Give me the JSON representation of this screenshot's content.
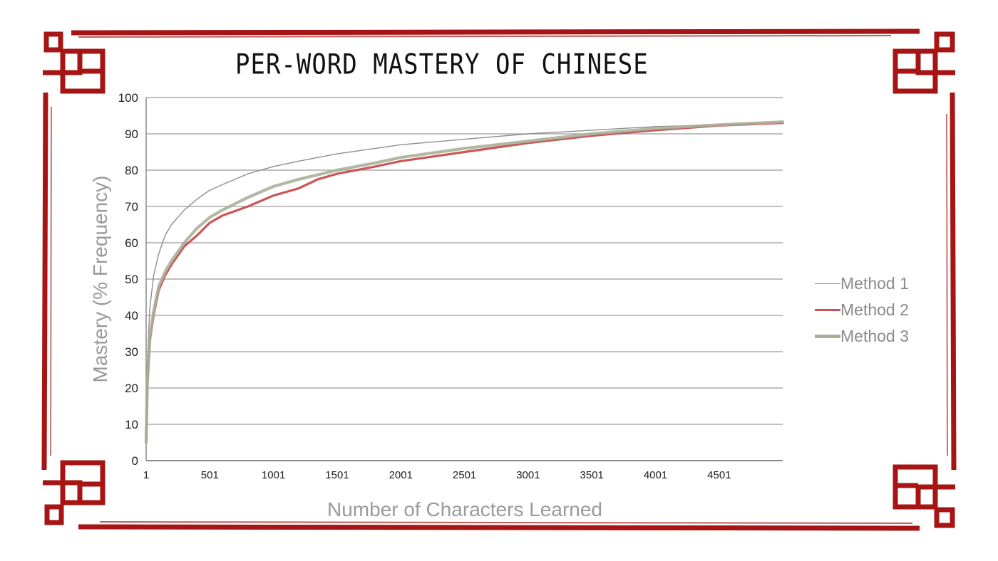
{
  "chart_data": {
    "type": "line",
    "title": "PER-WORD MASTERY OF CHINESE",
    "xlabel": "Number of Characters Learned",
    "ylabel": "Mastery (% Frequency)",
    "xlim": [
      1,
      5000
    ],
    "ylim": [
      0,
      100
    ],
    "x_ticks": [
      1,
      501,
      1001,
      1501,
      2001,
      2501,
      3001,
      3501,
      4001,
      4501
    ],
    "y_ticks": [
      0,
      10,
      20,
      30,
      40,
      50,
      60,
      70,
      80,
      90,
      100
    ],
    "grid": "horizontal",
    "legend_position": "right",
    "series": [
      {
        "name": "Method 1",
        "color": "#8e8e8e",
        "x": [
          1,
          10,
          30,
          60,
          100,
          150,
          200,
          300,
          400,
          501,
          600,
          800,
          1001,
          1200,
          1501,
          1800,
          2001,
          2501,
          3001,
          3501,
          4001,
          4501,
          5000
        ],
        "y": [
          5,
          27,
          42,
          51,
          57,
          62,
          65,
          69,
          72,
          74.5,
          76,
          79,
          81,
          82.5,
          84.5,
          86,
          87,
          88.5,
          90,
          91,
          92,
          92.5,
          93
        ]
      },
      {
        "name": "Method 2",
        "color": "#cc5555",
        "x": [
          1,
          10,
          30,
          60,
          100,
          150,
          200,
          300,
          400,
          501,
          600,
          800,
          1001,
          1150,
          1200,
          1350,
          1501,
          1800,
          2001,
          2501,
          3001,
          3501,
          4001,
          4501,
          5000
        ],
        "y": [
          5,
          20,
          33,
          40,
          47,
          51,
          54,
          59,
          62,
          65.5,
          67.5,
          70,
          73,
          74.5,
          75,
          77.5,
          79,
          81,
          82.5,
          85,
          87.5,
          89.5,
          91,
          92.3,
          93
        ]
      },
      {
        "name": "Method 3",
        "color": "#a9b09a",
        "x": [
          1,
          10,
          30,
          60,
          100,
          150,
          200,
          300,
          400,
          501,
          600,
          800,
          1001,
          1200,
          1501,
          1800,
          2001,
          2501,
          3001,
          3501,
          4001,
          4501,
          5000
        ],
        "y": [
          5,
          21,
          34,
          41,
          48,
          52,
          55,
          60,
          64,
          67,
          69,
          72.5,
          75.5,
          77.5,
          80,
          82,
          83.5,
          86,
          88,
          90,
          91.5,
          92.5,
          93.3
        ]
      }
    ]
  }
}
